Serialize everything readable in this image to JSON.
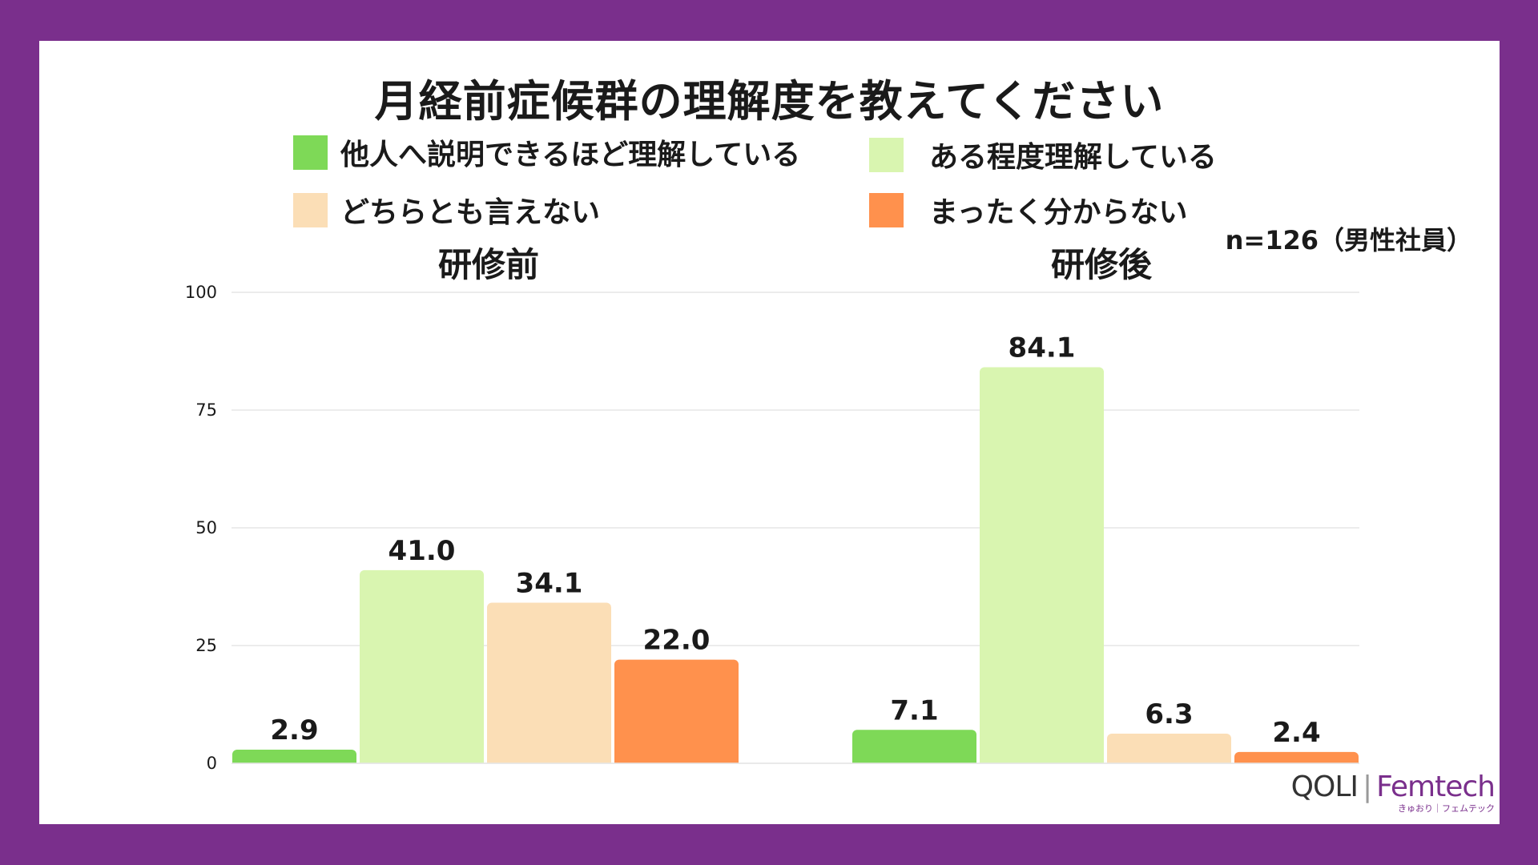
{
  "title": "月経前症候群の理解度を教えてください",
  "note": "n=126（男性社員）",
  "legend": [
    {
      "label": "他人へ説明できるほど理解している",
      "color": "#7ed957"
    },
    {
      "label": "ある程度理解している",
      "color": "#d9f5b0"
    },
    {
      "label": "どちらとも言えない",
      "color": "#fbdeb6"
    },
    {
      "label": "まったく分からない",
      "color": "#ff914d"
    }
  ],
  "logo": {
    "brand": "QOLI",
    "product": "Femtech",
    "sub": "きゅおり｜フェムテック"
  },
  "colors": {
    "frame": "#7a2f8c",
    "background": "#ffffff"
  },
  "chart_data": {
    "type": "bar",
    "categories": [
      "研修前",
      "研修後"
    ],
    "series": [
      {
        "name": "他人へ説明できるほど理解している",
        "values": [
          2.9,
          7.1
        ]
      },
      {
        "name": "ある程度理解している",
        "values": [
          41.0,
          84.1
        ]
      },
      {
        "name": "どちらとも言えない",
        "values": [
          34.1,
          6.3
        ]
      },
      {
        "name": "まったく分からない",
        "values": [
          22.0,
          2.4
        ]
      }
    ],
    "data_labels": [
      [
        "2.9",
        "41.0",
        "34.1",
        "22.0"
      ],
      [
        "7.1",
        "84.1",
        "6.3",
        "2.4"
      ]
    ],
    "yticks": [
      "0",
      "25",
      "50",
      "75",
      "100"
    ],
    "ylim": [
      0,
      100
    ],
    "grid": true,
    "legend_position": "top"
  }
}
